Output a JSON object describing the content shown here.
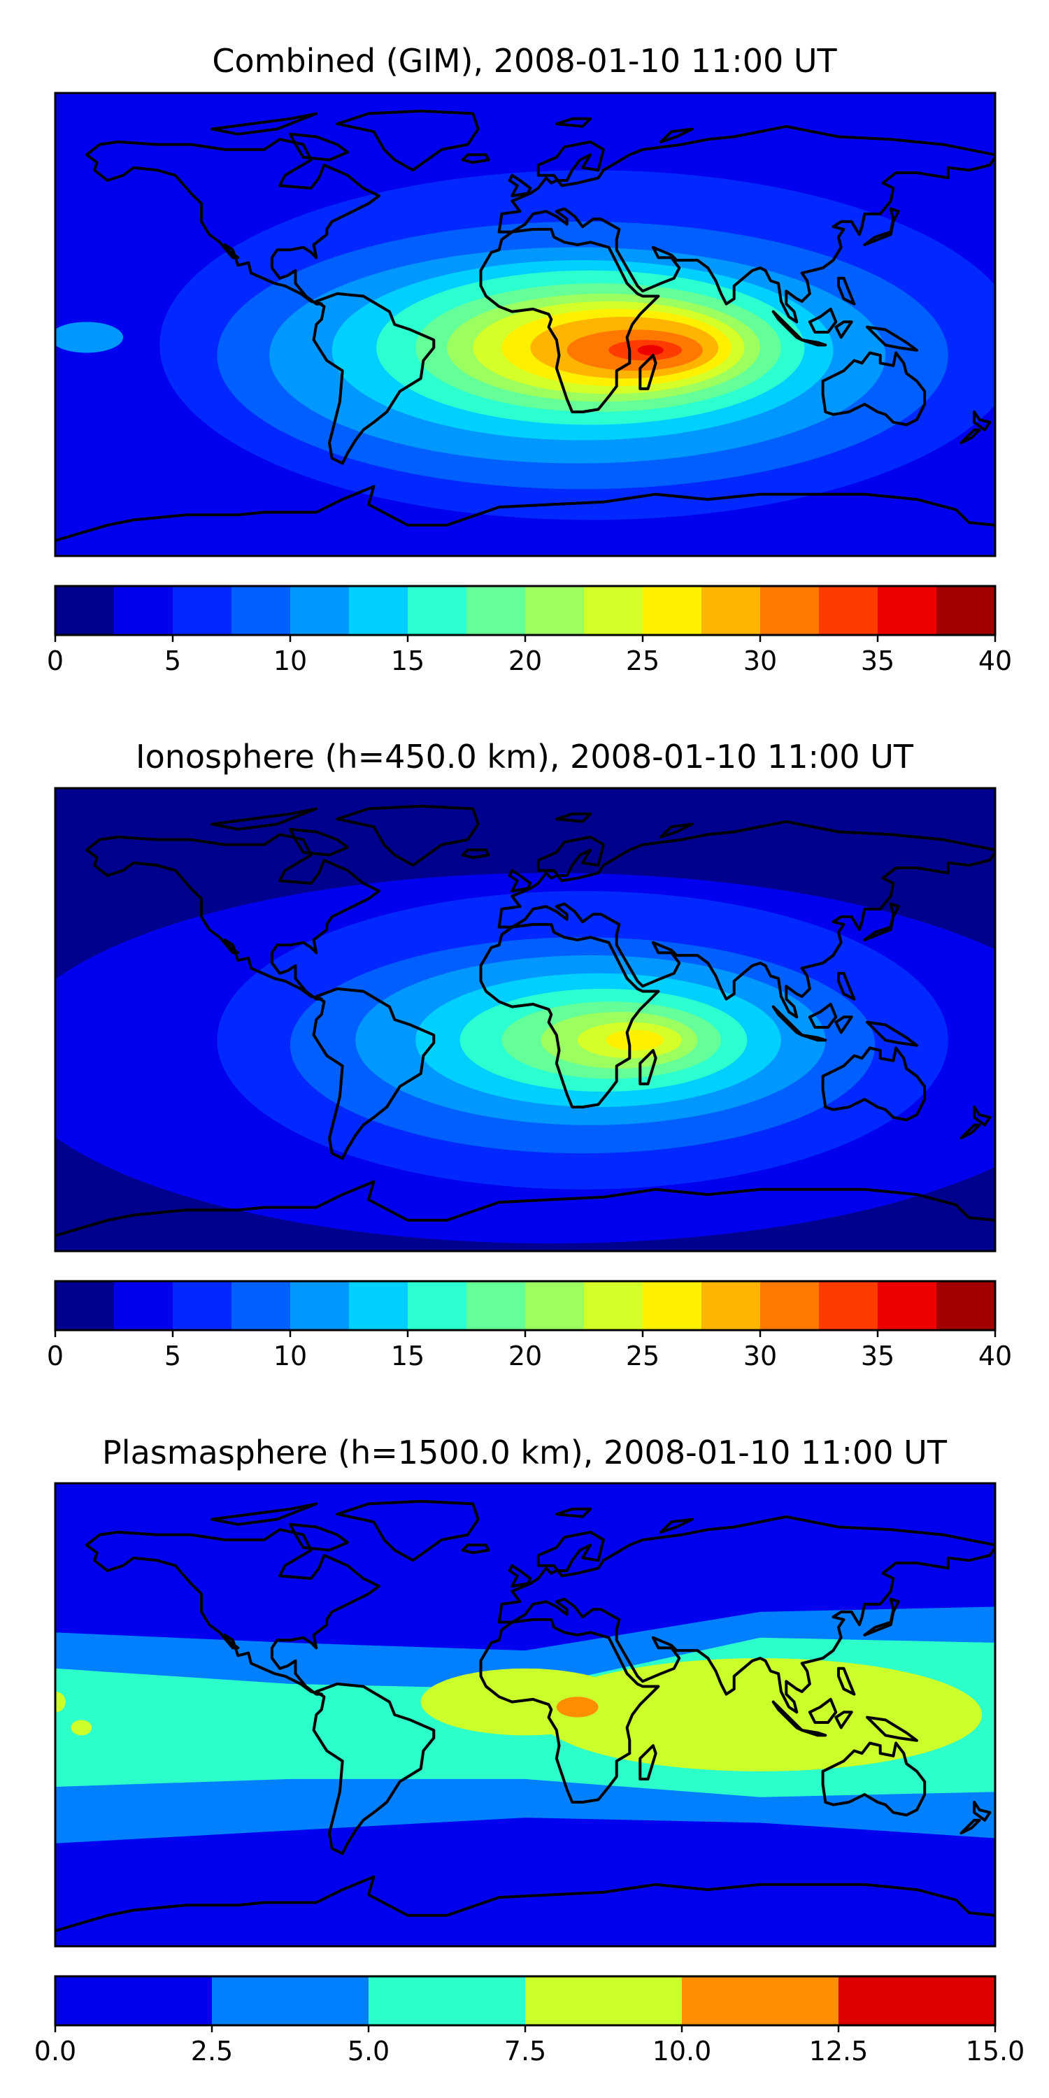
{
  "chart_data": [
    {
      "type": "heatmap",
      "title": "Combined (GIM), 2008-01-10 11:00 UT",
      "colorbar": {
        "ticks": [
          "0",
          "5",
          "10",
          "15",
          "20",
          "25",
          "30",
          "35",
          "40"
        ],
        "levels": [
          0,
          2.5,
          5,
          7.5,
          10,
          12.5,
          15,
          17.5,
          20,
          22.5,
          25,
          27.5,
          30,
          32.5,
          35,
          37.5,
          40
        ],
        "colors": [
          "#00008f",
          "#0000ef",
          "#0028ff",
          "#0060ff",
          "#0098ff",
          "#00d0ff",
          "#2cffd0",
          "#64ff98",
          "#9cff60",
          "#d4ff28",
          "#fff000",
          "#ffb400",
          "#ff7800",
          "#ff3c00",
          "#ef0000",
          "#a30000"
        ]
      },
      "background_level": 1,
      "blobs": [
        {
          "lon": 30,
          "lat": -5,
          "rlon": 190,
          "rlat": 85,
          "level": 1
        },
        {
          "lon": 25,
          "lat": -8,
          "rlon": 165,
          "rlat": 68,
          "level": 2
        },
        {
          "lon": 22,
          "lat": -12,
          "rlon": 140,
          "rlat": 52,
          "level": 3
        },
        {
          "lon": 20,
          "lat": -12,
          "rlon": 118,
          "rlat": 42,
          "level": 4
        },
        {
          "lon": 22,
          "lat": -10,
          "rlon": 96,
          "rlat": 35,
          "level": 5
        },
        {
          "lon": 25,
          "lat": -9,
          "rlon": 82,
          "rlat": 30,
          "level": 6
        },
        {
          "lon": 28,
          "lat": -9,
          "rlon": 70,
          "rlat": 25,
          "level": 7
        },
        {
          "lon": 30,
          "lat": -9,
          "rlon": 60,
          "rlat": 21,
          "level": 8
        },
        {
          "lon": 32,
          "lat": -9,
          "rlon": 52,
          "rlat": 18,
          "level": 9
        },
        {
          "lon": 35,
          "lat": -9,
          "rlon": 44,
          "rlat": 15,
          "level": 10
        },
        {
          "lon": 38,
          "lat": -9,
          "rlon": 36,
          "rlat": 12,
          "level": 11
        },
        {
          "lon": 42,
          "lat": -10,
          "rlon": 26,
          "rlat": 8,
          "level": 12
        },
        {
          "lon": 46,
          "lat": -10,
          "rlon": 14,
          "rlat": 4,
          "level": 13
        },
        {
          "lon": 48,
          "lat": -10,
          "rlon": 5,
          "rlat": 2,
          "level": 14
        },
        {
          "lon": -168,
          "lat": -5,
          "rlon": 14,
          "rlat": 6,
          "level": 4
        }
      ]
    },
    {
      "type": "heatmap",
      "title": "Ionosphere  (h=450.0 km), 2008-01-10 11:00 UT",
      "colorbar": {
        "ticks": [
          "0",
          "5",
          "10",
          "15",
          "20",
          "25",
          "30",
          "35",
          "40"
        ],
        "levels": [
          0,
          2.5,
          5,
          7.5,
          10,
          12.5,
          15,
          17.5,
          20,
          22.5,
          25,
          27.5,
          30,
          32.5,
          35,
          37.5,
          40
        ],
        "colors": [
          "#00008f",
          "#0000ef",
          "#0028ff",
          "#0060ff",
          "#0098ff",
          "#00d0ff",
          "#2cffd0",
          "#64ff98",
          "#9cff60",
          "#d4ff28",
          "#fff000",
          "#ffb400",
          "#ff7800",
          "#ff3c00",
          "#ef0000",
          "#a30000"
        ]
      },
      "background_level": 0,
      "blobs": [
        {
          "lon": 10,
          "lat": -15,
          "rlon": 210,
          "rlat": 72,
          "level": 1
        },
        {
          "lon": 22,
          "lat": -8,
          "rlon": 140,
          "rlat": 58,
          "level": 2
        },
        {
          "lon": 22,
          "lat": -10,
          "rlon": 112,
          "rlat": 42,
          "level": 3
        },
        {
          "lon": 25,
          "lat": -8,
          "rlon": 90,
          "rlat": 33,
          "level": 4
        },
        {
          "lon": 28,
          "lat": -8,
          "rlon": 70,
          "rlat": 26,
          "level": 5
        },
        {
          "lon": 30,
          "lat": -8,
          "rlon": 55,
          "rlat": 20,
          "level": 6
        },
        {
          "lon": 33,
          "lat": -8,
          "rlon": 42,
          "rlat": 15,
          "level": 7
        },
        {
          "lon": 36,
          "lat": -8,
          "rlon": 30,
          "rlat": 11,
          "level": 8
        },
        {
          "lon": 40,
          "lat": -8,
          "rlon": 20,
          "rlat": 7,
          "level": 9
        },
        {
          "lon": 42,
          "lat": -8,
          "rlon": 11,
          "rlat": 4,
          "level": 10
        }
      ]
    },
    {
      "type": "heatmap",
      "title": "Plasmasphere (h=1500.0 km), 2008-01-10 11:00 UT",
      "colorbar": {
        "ticks": [
          "0.0",
          "2.5",
          "5.0",
          "7.5",
          "10.0",
          "12.5",
          "15.0"
        ],
        "levels": [
          0,
          2.5,
          5,
          7.5,
          10,
          12.5,
          15
        ],
        "colors": [
          "#0000ef",
          "#0080ff",
          "#2cffca",
          "#caff2c",
          "#ff8f00",
          "#df0000"
        ]
      },
      "background_level": 0,
      "bands": [
        {
          "level": 1,
          "north": [
            [
              -180,
              32
            ],
            [
              -90,
              28
            ],
            [
              0,
              25
            ],
            [
              90,
              40
            ],
            [
              180,
              42
            ]
          ],
          "south": [
            [
              -180,
              -50
            ],
            [
              -90,
              -45
            ],
            [
              0,
              -40
            ],
            [
              90,
              -42
            ],
            [
              180,
              -48
            ]
          ]
        },
        {
          "level": 2,
          "north": [
            [
              -180,
              18
            ],
            [
              -90,
              12
            ],
            [
              0,
              10
            ],
            [
              90,
              30
            ],
            [
              180,
              28
            ]
          ],
          "south": [
            [
              -180,
              -28
            ],
            [
              -90,
              -25
            ],
            [
              0,
              -25
            ],
            [
              90,
              -32
            ],
            [
              180,
              -30
            ]
          ]
        }
      ],
      "blobs": [
        {
          "lon": 90,
          "lat": 0,
          "rlon": 85,
          "rlat": 22,
          "level": 3
        },
        {
          "lon": 0,
          "lat": 5,
          "rlon": 40,
          "rlat": 13,
          "level": 3
        },
        {
          "lon": 20,
          "lat": 3,
          "rlon": 8,
          "rlat": 4,
          "level": 4
        },
        {
          "lon": -180,
          "lat": 5,
          "rlon": 4,
          "rlat": 4,
          "level": 3
        },
        {
          "lon": -170,
          "lat": -5,
          "rlon": 4,
          "rlat": 3,
          "level": 3
        }
      ]
    }
  ]
}
